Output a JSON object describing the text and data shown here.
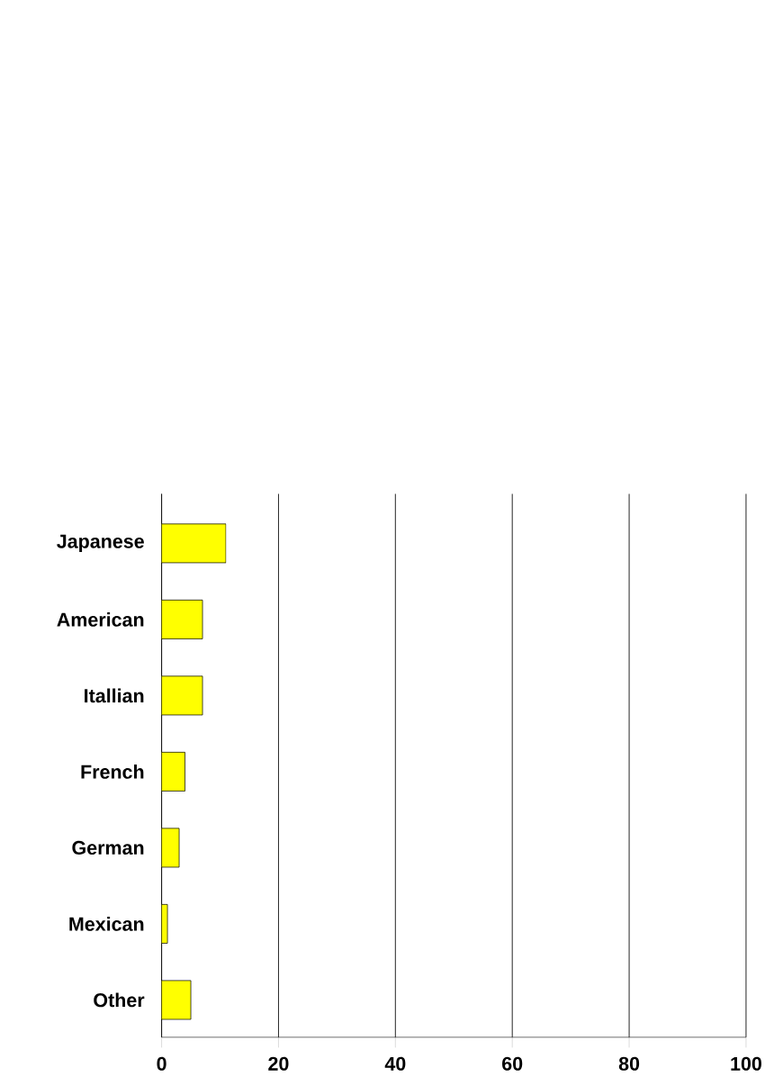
{
  "chart_data": {
    "type": "bar",
    "orientation": "horizontal",
    "categories": [
      "Japanese",
      "American",
      "Itallian",
      "French",
      "German",
      "Mexican",
      "Other"
    ],
    "values": [
      11,
      7,
      7,
      4,
      3,
      1,
      5
    ],
    "color": "#ffff00",
    "xlim": [
      0,
      100
    ],
    "xticks": [
      0,
      20,
      40,
      60,
      80,
      100
    ],
    "grid": "x"
  }
}
